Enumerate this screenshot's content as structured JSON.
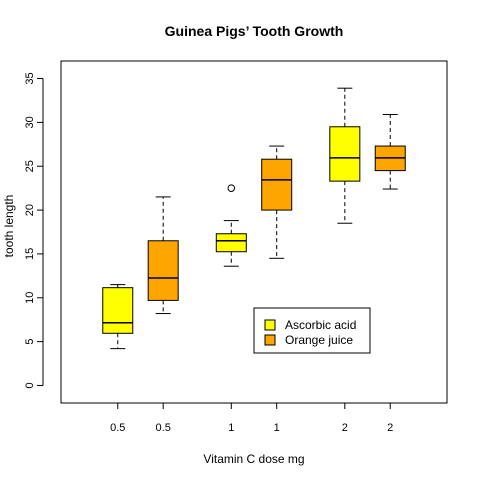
{
  "chart_data": {
    "type": "boxplot",
    "title": "Guinea Pigs’ Tooth Growth",
    "xlabel": "Vitamin C dose mg",
    "ylabel": "tooth length",
    "ylim": [
      -2,
      37
    ],
    "yticks": [
      0,
      5,
      10,
      15,
      20,
      25,
      30,
      35
    ],
    "grid": false,
    "legend_position": "bottom-right",
    "series": [
      {
        "name": "Ascorbic acid",
        "color": "#ffff00"
      },
      {
        "name": "Orange juice",
        "color": "#ffa500"
      }
    ],
    "boxes": [
      {
        "label": "0.5",
        "series": "Ascorbic acid",
        "x": 0.8,
        "whisker_low": 4.2,
        "q1": 5.95,
        "median": 7.15,
        "q3": 11.15,
        "whisker_high": 11.5,
        "outliers": []
      },
      {
        "label": "0.5",
        "series": "Orange juice",
        "x": 1.2,
        "whisker_low": 8.2,
        "q1": 9.7,
        "median": 12.25,
        "q3": 16.5,
        "whisker_high": 21.5,
        "outliers": []
      },
      {
        "label": "1",
        "series": "Ascorbic acid",
        "x": 1.8,
        "whisker_low": 13.6,
        "q1": 15.25,
        "median": 16.5,
        "q3": 17.3,
        "whisker_high": 18.8,
        "outliers": [
          22.5
        ]
      },
      {
        "label": "1",
        "series": "Orange juice",
        "x": 2.2,
        "whisker_low": 14.5,
        "q1": 20.0,
        "median": 23.45,
        "q3": 25.8,
        "whisker_high": 27.3,
        "outliers": []
      },
      {
        "label": "2",
        "series": "Ascorbic acid",
        "x": 2.8,
        "whisker_low": 18.5,
        "q1": 23.3,
        "median": 25.95,
        "q3": 29.5,
        "whisker_high": 33.9,
        "outliers": []
      },
      {
        "label": "2",
        "series": "Orange juice",
        "x": 3.2,
        "whisker_low": 22.4,
        "q1": 24.5,
        "median": 25.95,
        "q3": 27.3,
        "whisker_high": 30.9,
        "outliers": []
      }
    ]
  }
}
